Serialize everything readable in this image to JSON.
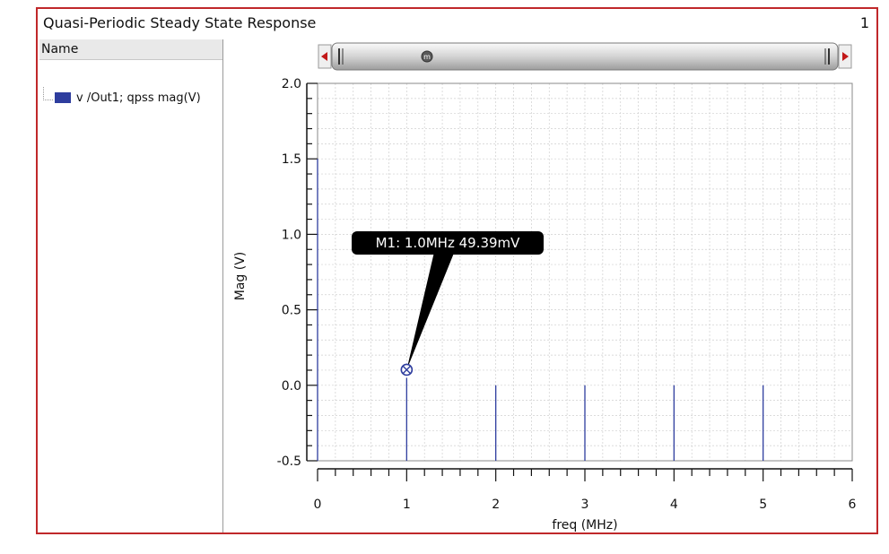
{
  "window": {
    "title": "Quasi-Periodic Steady State Response",
    "page_number": "1"
  },
  "left_panel": {
    "header": "Name",
    "items": [
      {
        "label": "v /Out1; qpss mag(V)",
        "color": "#2e3d9e"
      }
    ]
  },
  "scrollbar": {
    "thumb_marker": "m"
  },
  "marker": {
    "label": "M1: 1.0MHz 49.39mV",
    "x": 1.0,
    "y": 0.04939
  },
  "chart_data": {
    "type": "bar",
    "title": "",
    "xlabel": "freq (MHz)",
    "ylabel": "Mag (V)",
    "xlim": [
      0,
      6
    ],
    "ylim": [
      -0.5,
      2.0
    ],
    "baseline": -0.5,
    "x_ticks": [
      "0",
      "1",
      "2",
      "3",
      "4",
      "5",
      "6"
    ],
    "y_ticks": [
      "2.0",
      "1.5",
      "1.0",
      "0.5",
      "0.0",
      "-0.5"
    ],
    "grid": true,
    "series": [
      {
        "name": "v /Out1; qpss mag(V)",
        "color": "#2e3d9e",
        "x": [
          0,
          1,
          2,
          3,
          4,
          5
        ],
        "y": [
          1.5,
          0.04939,
          0.0,
          0.0,
          0.0,
          0.0
        ]
      }
    ]
  }
}
